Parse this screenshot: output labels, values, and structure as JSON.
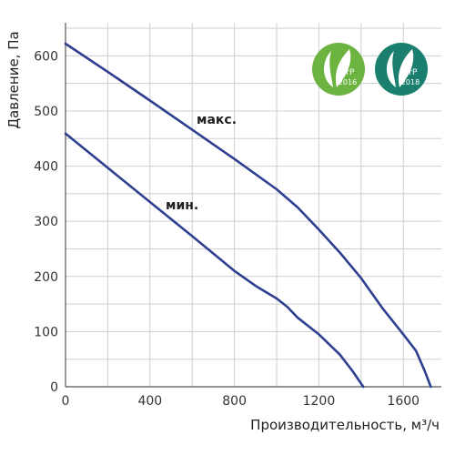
{
  "chart_data": {
    "type": "line",
    "title": "",
    "xlabel": "Производительность, м³/ч",
    "ylabel": "Давление, Па",
    "xlim": [
      0,
      1780
    ],
    "ylim": [
      0,
      660
    ],
    "x_ticks": [
      "0",
      "400",
      "800",
      "1200",
      "1600"
    ],
    "y_ticks": [
      "0",
      "100",
      "200",
      "300",
      "400",
      "500",
      "600"
    ],
    "grid": true,
    "series": [
      {
        "name": "макс.",
        "color": "#2e3f8f",
        "points": [
          [
            0,
            622
          ],
          [
            200,
            571
          ],
          [
            400,
            519
          ],
          [
            600,
            466
          ],
          [
            800,
            413
          ],
          [
            1000,
            358
          ],
          [
            1100,
            325
          ],
          [
            1200,
            285
          ],
          [
            1300,
            243
          ],
          [
            1400,
            197
          ],
          [
            1500,
            143
          ],
          [
            1600,
            95
          ],
          [
            1660,
            65
          ],
          [
            1700,
            30
          ],
          [
            1730,
            0
          ]
        ]
      },
      {
        "name": "мин.",
        "color": "#2e3f8f",
        "points": [
          [
            0,
            459
          ],
          [
            200,
            397
          ],
          [
            400,
            335
          ],
          [
            600,
            273
          ],
          [
            800,
            210
          ],
          [
            900,
            183
          ],
          [
            1000,
            160
          ],
          [
            1050,
            145
          ],
          [
            1100,
            125
          ],
          [
            1200,
            95
          ],
          [
            1300,
            58
          ],
          [
            1360,
            28
          ],
          [
            1410,
            0
          ]
        ]
      }
    ]
  },
  "badges": [
    {
      "text": "ErP",
      "year": "2016",
      "color": "#6cb33f"
    },
    {
      "text": "ErP",
      "year": "2018",
      "color": "#1a7f6e"
    }
  ]
}
